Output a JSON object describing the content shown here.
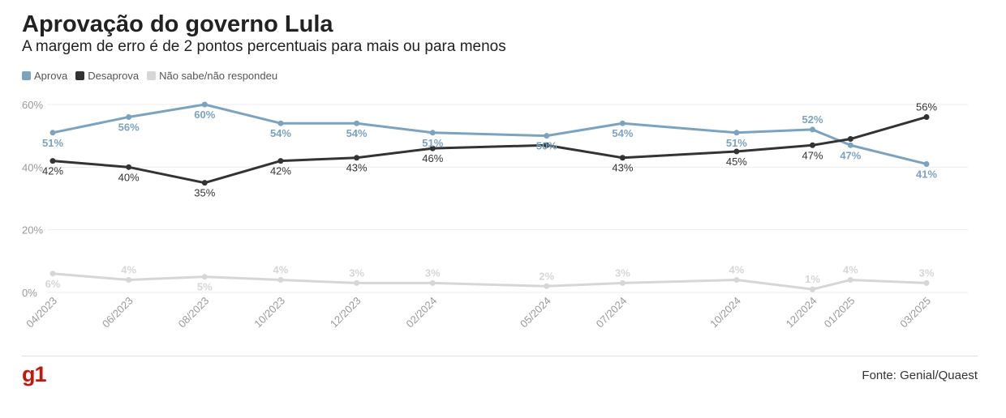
{
  "header": {
    "title": "Aprovação do governo Lula",
    "subtitle": "A margem de erro é de 2 pontos percentuais para mais ou para menos"
  },
  "footer": {
    "logo": "g1",
    "source": "Fonte: Genial/Quaest"
  },
  "chart_data": {
    "type": "line",
    "title": "Aprovação do governo Lula",
    "subtitle": "A margem de erro é de 2 pontos percentuais para mais ou para menos",
    "categories": [
      "04/2023",
      "06/2023",
      "08/2023",
      "10/2023",
      "12/2023",
      "02/2024",
      "05/2024",
      "07/2024",
      "10/2024",
      "12/2024",
      "01/2025",
      "03/2025"
    ],
    "x_month_index": [
      0,
      2,
      4,
      6,
      8,
      10,
      13,
      15,
      18,
      20,
      21,
      23
    ],
    "y_ticks": [
      "0%",
      "20%",
      "40%",
      "60%"
    ],
    "y_tick_values": [
      0,
      20,
      40,
      60
    ],
    "ylim": [
      0,
      60
    ],
    "grid": true,
    "legend_position": "top-left",
    "series": [
      {
        "name": "Aprova",
        "color": "#7ba3c0",
        "values": [
          51,
          56,
          60,
          54,
          54,
          51,
          50,
          54,
          51,
          52,
          47,
          41
        ],
        "label_pos": [
          "below",
          "below",
          "below",
          "below",
          "below",
          "below",
          "below",
          "below",
          "below",
          "above",
          "below",
          "below"
        ]
      },
      {
        "name": "Desaprova",
        "color": "#333333",
        "values": [
          42,
          40,
          35,
          42,
          43,
          46,
          47,
          43,
          45,
          47,
          49,
          56
        ],
        "label_pos": [
          "below",
          "below",
          "below",
          "below",
          "below",
          "below",
          "none",
          "below",
          "below",
          "below",
          "none",
          "above"
        ]
      },
      {
        "name": "Não sabe/não respondeu",
        "color": "#d6d6d6",
        "values": [
          6,
          4,
          5,
          4,
          3,
          3,
          2,
          3,
          4,
          1,
          4,
          3
        ],
        "label_pos": [
          "below",
          "above",
          "below",
          "above",
          "above",
          "above",
          "above",
          "above",
          "above",
          "above",
          "above",
          "above"
        ]
      }
    ]
  }
}
